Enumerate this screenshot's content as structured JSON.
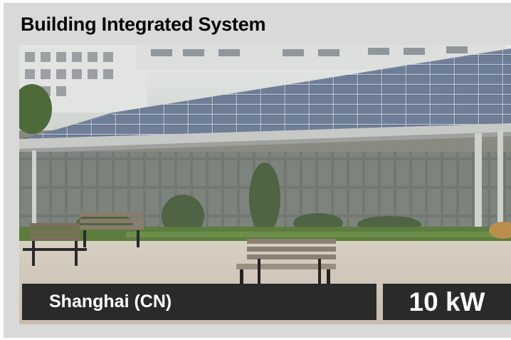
{
  "title": "Building Integrated System",
  "photo": {
    "description_icon": "solar-roof-building-photo"
  },
  "caption": {
    "location": "Shanghai (CN)",
    "power": "10 kW"
  },
  "colors": {
    "card_background": "#d9d9d9",
    "caption_background": "#2a2a2a",
    "caption_text": "#ffffff"
  }
}
